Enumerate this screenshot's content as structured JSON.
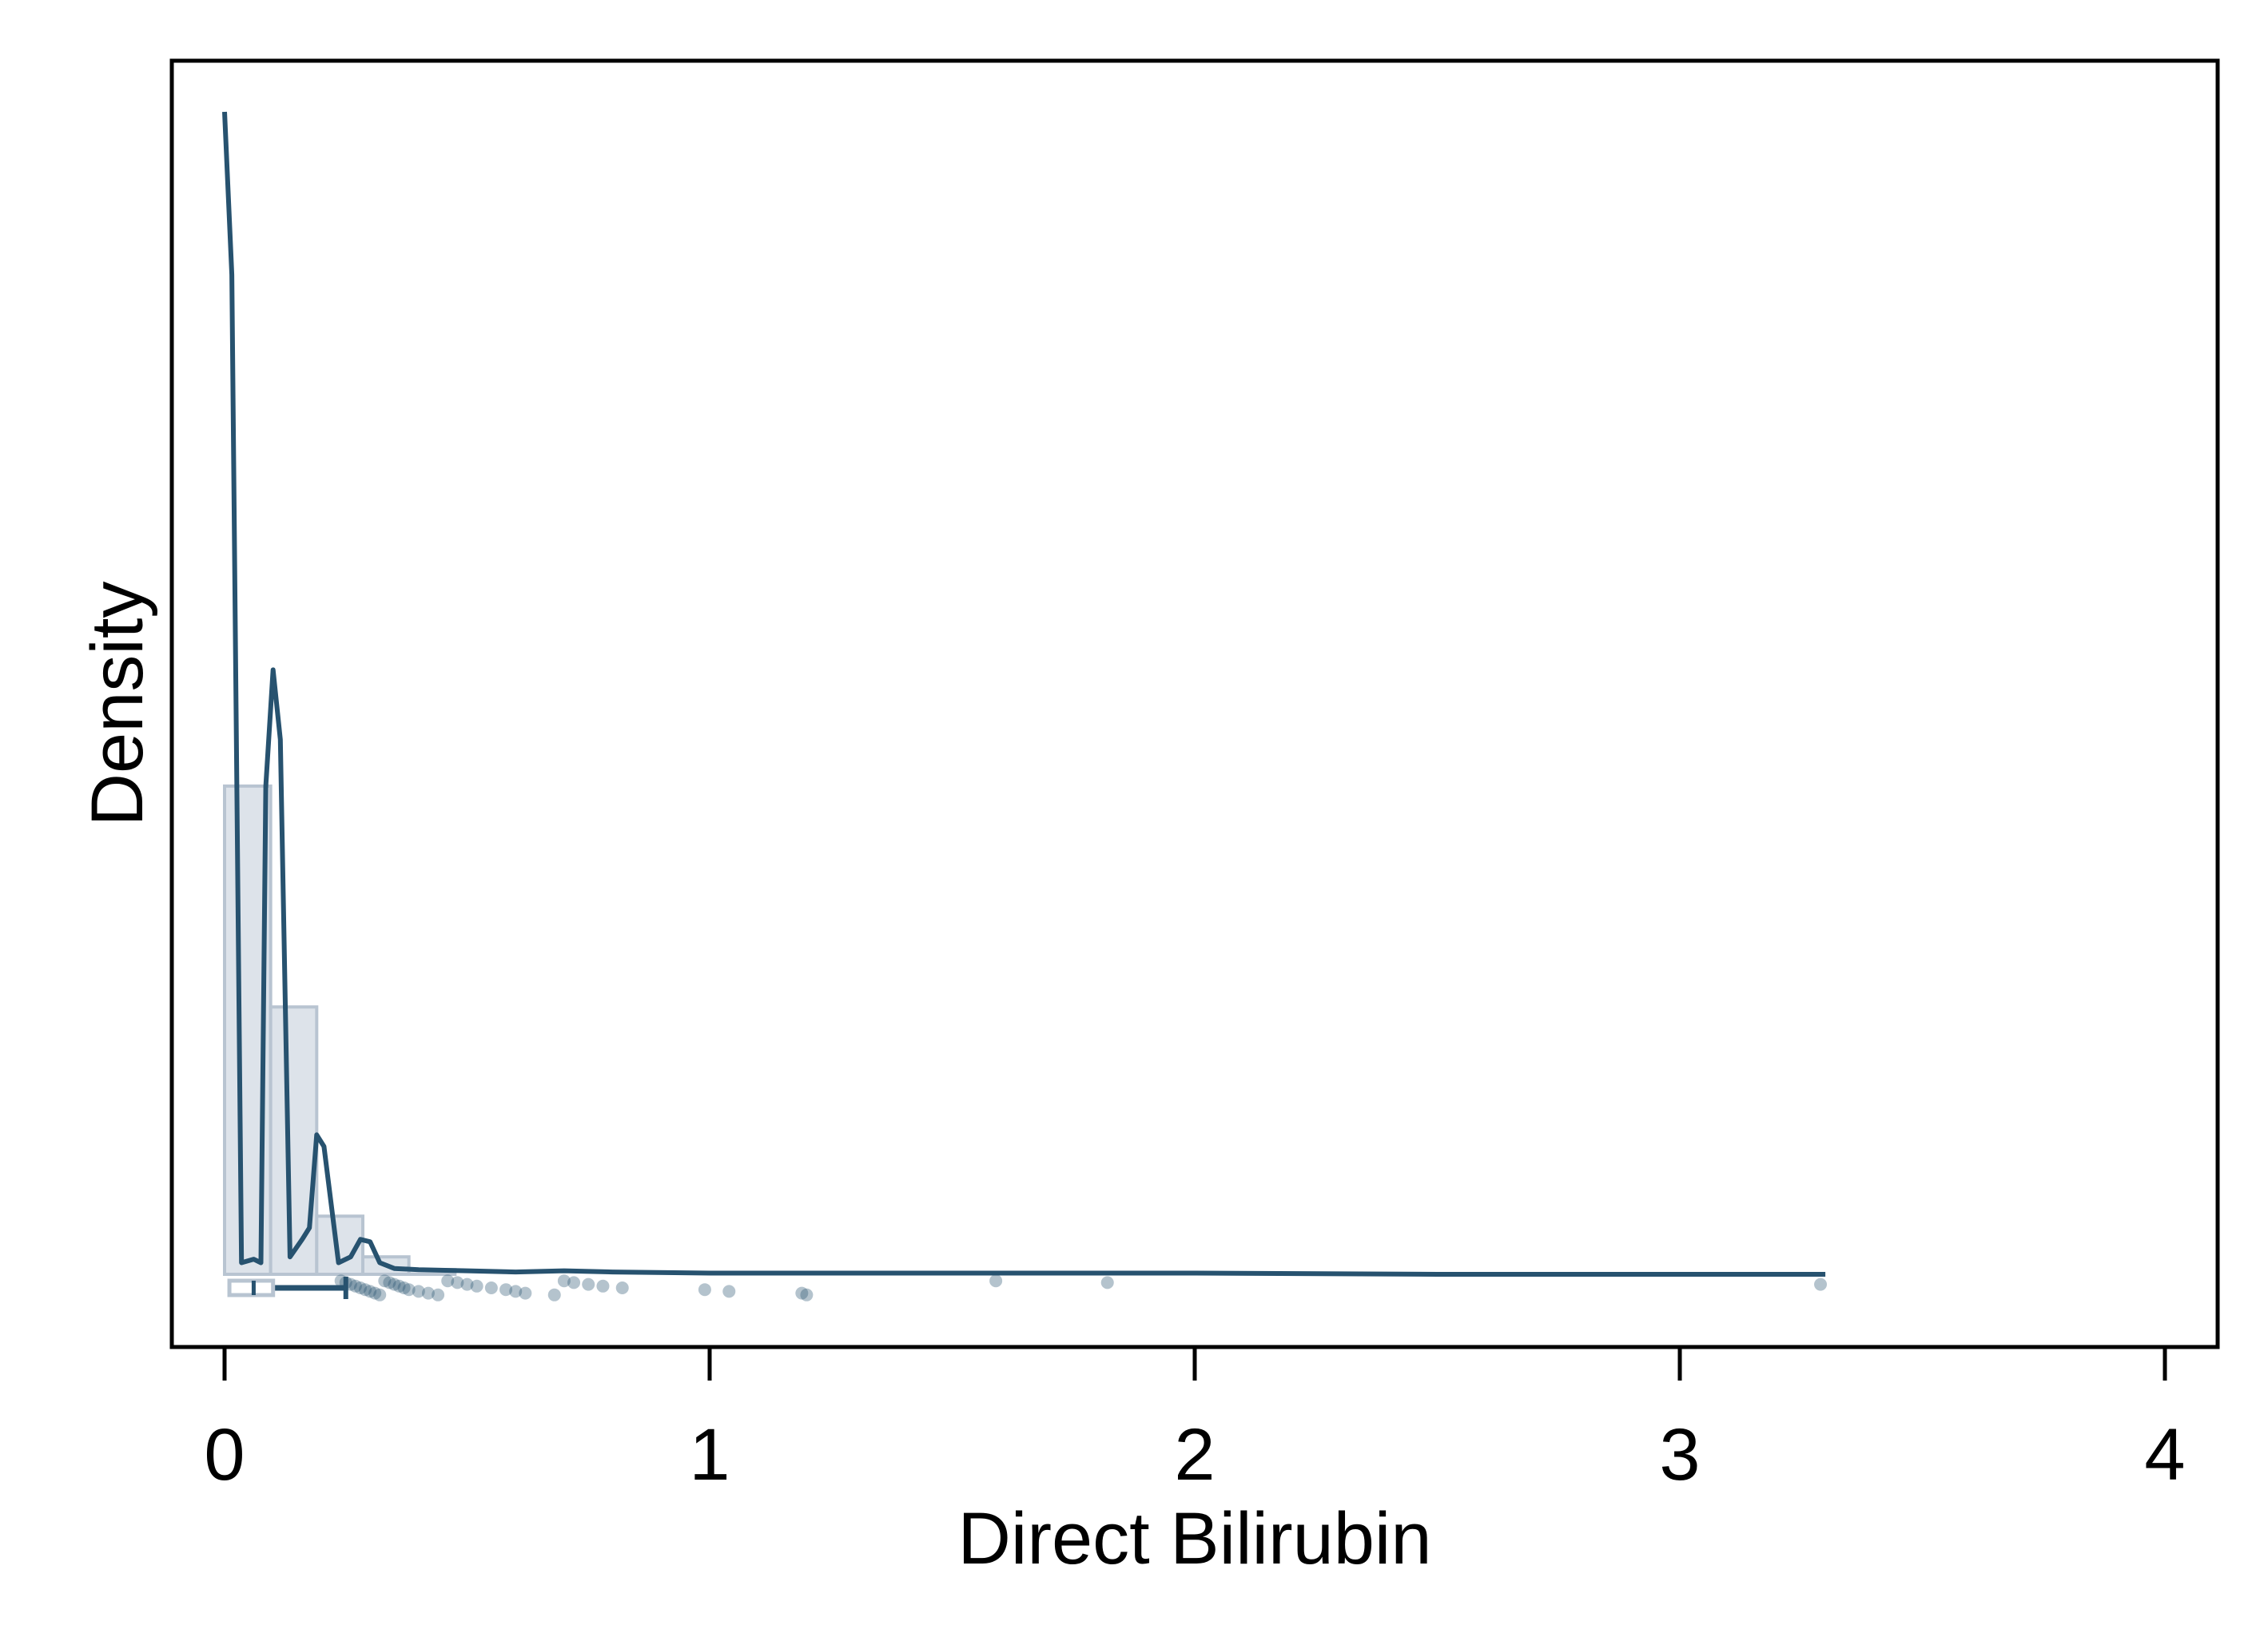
{
  "chart_data": {
    "type": "histogram",
    "title": "",
    "xlabel": "Direct Bilirubin",
    "ylabel": "Density",
    "xlim": [
      -0.1,
      4.1
    ],
    "x_ticks": [
      0,
      1,
      2,
      3,
      4
    ],
    "x_tick_labels": [
      "0",
      "1",
      "2",
      "3",
      "4"
    ],
    "y_ticks": [],
    "grid": false,
    "legend": "none",
    "colors": {
      "density_line": "#27526f",
      "hist_fill": "#dde3ea",
      "hist_stroke": "#b8c4d1",
      "points": "#27526f",
      "frame": "#000000"
    },
    "histogram": {
      "bin_width": 0.095,
      "bins": [
        {
          "x0": 0.0,
          "x1": 0.095,
          "height": 0.42
        },
        {
          "x0": 0.095,
          "x1": 0.19,
          "height": 0.23
        },
        {
          "x0": 0.19,
          "x1": 0.285,
          "height": 0.05
        },
        {
          "x0": 0.285,
          "x1": 0.38,
          "height": 0.015
        },
        {
          "x0": 0.38,
          "x1": 0.475,
          "height": 0.004
        }
      ]
    },
    "density_curve": {
      "x": [
        0.0,
        0.015,
        0.035,
        0.06,
        0.075,
        0.085,
        0.1,
        0.115,
        0.135,
        0.16,
        0.175,
        0.19,
        0.205,
        0.22,
        0.235,
        0.26,
        0.28,
        0.3,
        0.32,
        0.35,
        0.4,
        0.5,
        0.6,
        0.7,
        0.8,
        1.0,
        1.2,
        1.5,
        1.8,
        2.0,
        2.5,
        3.0,
        3.3
      ],
      "y": [
        1.0,
        0.86,
        0.01,
        0.013,
        0.01,
        0.42,
        0.52,
        0.46,
        0.015,
        0.03,
        0.04,
        0.12,
        0.11,
        0.06,
        0.01,
        0.015,
        0.03,
        0.028,
        0.01,
        0.005,
        0.004,
        0.003,
        0.002,
        0.003,
        0.002,
        0.001,
        0.001,
        0.001,
        0.001,
        0.001,
        0.0,
        0.0,
        0.0
      ]
    },
    "boxplot": {
      "q1": 0.01,
      "median": 0.06,
      "q3": 0.1,
      "whisker_low": 0.0,
      "whisker_high": 0.25
    },
    "points": [
      0.24,
      0.25,
      0.26,
      0.27,
      0.28,
      0.29,
      0.3,
      0.31,
      0.32,
      0.33,
      0.34,
      0.35,
      0.36,
      0.37,
      0.38,
      0.4,
      0.42,
      0.44,
      0.46,
      0.48,
      0.5,
      0.52,
      0.55,
      0.58,
      0.6,
      0.62,
      0.68,
      0.7,
      0.72,
      0.75,
      0.78,
      0.82,
      0.99,
      1.04,
      1.19,
      1.2,
      1.59,
      1.82,
      3.29
    ]
  }
}
